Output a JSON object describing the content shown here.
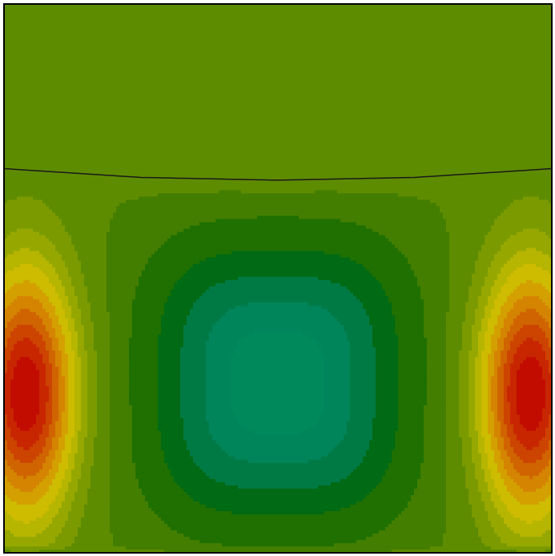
{
  "chart_data": {
    "type": "heatmap",
    "title": "",
    "xlabel": "",
    "ylabel": "",
    "legend": "none",
    "grid": false,
    "axes_visible": false,
    "interface_curve": {
      "color": "#1a1a1a",
      "points": [
        {
          "x": 0.0,
          "y": 0.7
        },
        {
          "x": 0.25,
          "y": 0.684
        },
        {
          "x": 0.5,
          "y": 0.679
        },
        {
          "x": 0.75,
          "y": 0.684
        },
        {
          "x": 1.0,
          "y": 0.7
        }
      ]
    },
    "field": {
      "background_color": "#5e8c00",
      "levels": 20,
      "upper_region_value": 0.0,
      "features": [
        {
          "type": "positive-peak",
          "cx": 0.04,
          "cy": 0.29,
          "peak": 1.0
        },
        {
          "type": "positive-peak",
          "cx": 0.96,
          "cy": 0.29,
          "peak": 1.0
        },
        {
          "type": "negative-vortex",
          "cx": 0.5,
          "cy": 0.31,
          "peak": -0.45
        }
      ],
      "palette": [
        {
          "v": -0.45,
          "color": "#008a5c"
        },
        {
          "v": -0.38,
          "color": "#00845a"
        },
        {
          "v": -0.3,
          "color": "#007a45"
        },
        {
          "v": -0.22,
          "color": "#006a14"
        },
        {
          "v": -0.15,
          "color": "#1f7000"
        },
        {
          "v": -0.08,
          "color": "#437e00"
        },
        {
          "v": -0.02,
          "color": "#5e8c00"
        },
        {
          "v": 0.06,
          "color": "#7a9a00"
        },
        {
          "v": 0.14,
          "color": "#96a800"
        },
        {
          "v": 0.22,
          "color": "#b6b500"
        },
        {
          "v": 0.3,
          "color": "#cdbc00"
        },
        {
          "v": 0.4,
          "color": "#d4a000"
        },
        {
          "v": 0.5,
          "color": "#d48400"
        },
        {
          "v": 0.6,
          "color": "#d06400"
        },
        {
          "v": 0.7,
          "color": "#cc4400"
        },
        {
          "v": 0.8,
          "color": "#c82600"
        },
        {
          "v": 0.9,
          "color": "#c20c00"
        },
        {
          "v": 1.0,
          "color": "#b80000"
        }
      ]
    }
  }
}
